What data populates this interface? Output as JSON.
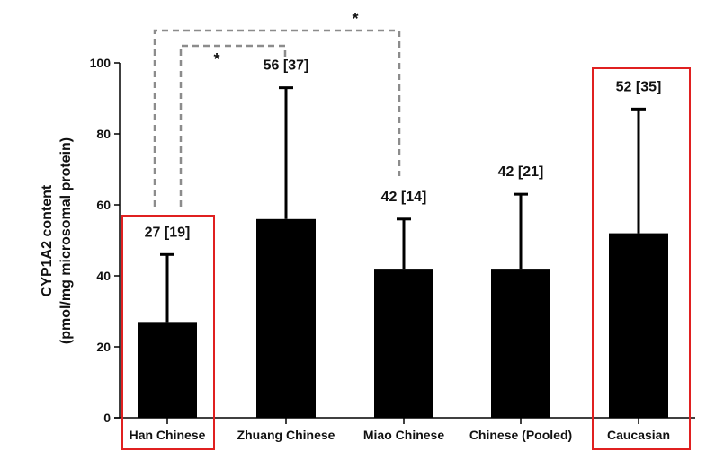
{
  "chart_data": {
    "type": "bar",
    "title": "",
    "xlabel": "",
    "ylabel": "CYP1A2 content (pmol/mg microsomal protein)",
    "ylabel_lines": [
      "CYP1A2 content",
      "(pmol/mg microsomal protein)"
    ],
    "ylim": [
      0,
      100
    ],
    "yticks": [
      0,
      20,
      40,
      60,
      80,
      100
    ],
    "grid": false,
    "categories": [
      "Han Chinese",
      "Zhuang Chinese",
      "Miao Chinese",
      "Chinese (Pooled)",
      "Caucasian"
    ],
    "values": [
      27,
      56,
      42,
      42,
      52
    ],
    "error_sd": [
      19,
      37,
      14,
      21,
      35
    ],
    "error_upper": [
      46,
      93,
      56,
      63,
      87
    ],
    "value_labels": [
      "27 [19]",
      "56 [37]",
      "42 [14]",
      "42 [21]",
      "52 [35]"
    ],
    "bar_color": "#000000",
    "highlighted_categories": [
      "Han Chinese",
      "Caucasian"
    ],
    "highlight_color": "#e02020",
    "significance": [
      {
        "from": "Han Chinese",
        "to": "Zhuang Chinese",
        "label": "*"
      },
      {
        "from": "Han Chinese",
        "to": "Miao Chinese",
        "label": "*"
      }
    ],
    "bracket_color": "#8c8c8c"
  }
}
